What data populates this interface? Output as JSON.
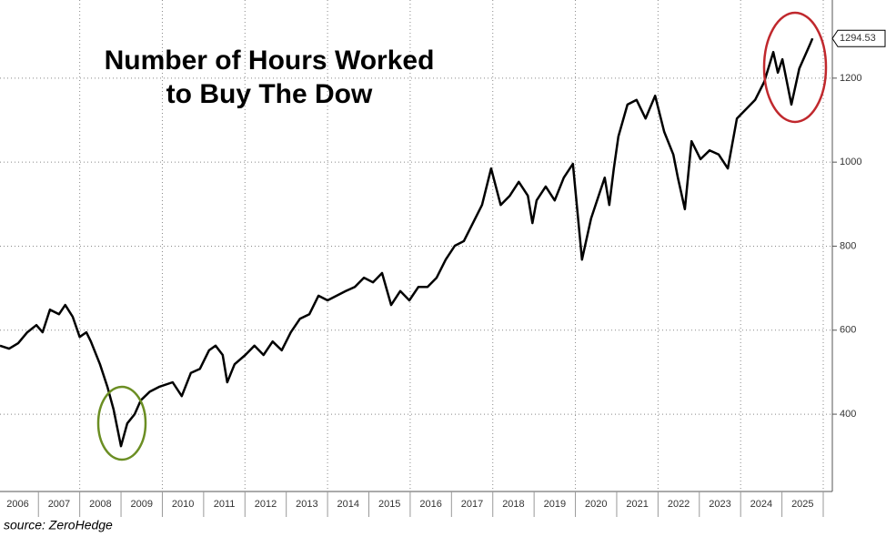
{
  "chart_data": {
    "type": "line",
    "title": [
      "Number of Hours Worked",
      "to Buy The Dow"
    ],
    "source": "source: ZeroHedge",
    "color": "#000000",
    "grid": true,
    "x": [
      2006.07,
      2006.29,
      2006.51,
      2006.73,
      2006.95,
      2007.1,
      2007.28,
      2007.5,
      2007.65,
      2007.83,
      2008.0,
      2008.16,
      2008.27,
      2008.49,
      2008.67,
      2008.82,
      2009.0,
      2009.15,
      2009.33,
      2009.48,
      2009.7,
      2009.92,
      2010.25,
      2010.47,
      2010.69,
      2010.91,
      2011.13,
      2011.29,
      2011.46,
      2011.57,
      2011.75,
      2012.01,
      2012.23,
      2012.45,
      2012.67,
      2012.89,
      2013.11,
      2013.33,
      2013.56,
      2013.78,
      2014.0,
      2014.22,
      2014.44,
      2014.66,
      2014.88,
      2015.1,
      2015.32,
      2015.54,
      2015.76,
      2015.98,
      2016.2,
      2016.42,
      2016.64,
      2016.86,
      2017.08,
      2017.3,
      2017.52,
      2017.74,
      2017.96,
      2018.19,
      2018.41,
      2018.63,
      2018.85,
      2018.96,
      2019.06,
      2019.28,
      2019.5,
      2019.72,
      2019.94,
      2020.16,
      2020.38,
      2020.6,
      2020.71,
      2020.82,
      2020.93,
      2021.04,
      2021.26,
      2021.48,
      2021.7,
      2021.93,
      2022.15,
      2022.37,
      2022.48,
      2022.65,
      2022.81,
      2023.03,
      2023.25,
      2023.47,
      2023.69,
      2023.91,
      2024.13,
      2024.35,
      2024.57,
      2024.79,
      2024.9,
      2025.01,
      2025.23,
      2025.42,
      2025.67,
      2025.74
    ],
    "values": [
      563,
      556,
      569,
      595,
      612,
      595,
      649,
      638,
      660,
      632,
      584,
      595,
      573,
      519,
      465,
      411,
      324,
      378,
      400,
      433,
      454,
      465,
      476,
      443,
      498,
      508,
      552,
      563,
      541,
      476,
      519,
      541,
      563,
      541,
      573,
      552,
      595,
      627,
      638,
      682,
      671,
      682,
      693,
      703,
      725,
      714,
      736,
      660,
      693,
      671,
      703,
      703,
      725,
      768,
      801,
      812,
      855,
      898,
      985,
      898,
      920,
      953,
      920,
      855,
      909,
      942,
      909,
      963,
      996,
      768,
      866,
      931,
      963,
      898,
      985,
      1061,
      1137,
      1148,
      1104,
      1158,
      1072,
      1018,
      963,
      888,
      1050,
      1007,
      1028,
      1018,
      985,
      1104,
      1126,
      1148,
      1191,
      1262,
      1213,
      1245,
      1137,
      1223,
      1278,
      1294.53
    ],
    "xlim": [
      2006.07,
      2026.22
    ],
    "xticks": [
      {
        "value": 2006.5,
        "label": "2006"
      },
      {
        "value": 2007.5,
        "label": "2007"
      },
      {
        "value": 2008.5,
        "label": "2008"
      },
      {
        "value": 2009.5,
        "label": "2009"
      },
      {
        "value": 2010.5,
        "label": "2010"
      },
      {
        "value": 2011.5,
        "label": "2011"
      },
      {
        "value": 2012.5,
        "label": "2012"
      },
      {
        "value": 2013.5,
        "label": "2013"
      },
      {
        "value": 2014.5,
        "label": "2014"
      },
      {
        "value": 2015.5,
        "label": "2015"
      },
      {
        "value": 2016.5,
        "label": "2016"
      },
      {
        "value": 2017.5,
        "label": "2017"
      },
      {
        "value": 2018.5,
        "label": "2018"
      },
      {
        "value": 2019.5,
        "label": "2019"
      },
      {
        "value": 2020.5,
        "label": "2020"
      },
      {
        "value": 2021.5,
        "label": "2021"
      },
      {
        "value": 2022.5,
        "label": "2022"
      },
      {
        "value": 2023.5,
        "label": "2023"
      },
      {
        "value": 2024.5,
        "label": "2024"
      },
      {
        "value": 2025.5,
        "label": "2025"
      }
    ],
    "ylim": [
      216,
      1386
    ],
    "yticks": [
      400,
      600,
      800,
      1000,
      1200
    ]
  }
}
